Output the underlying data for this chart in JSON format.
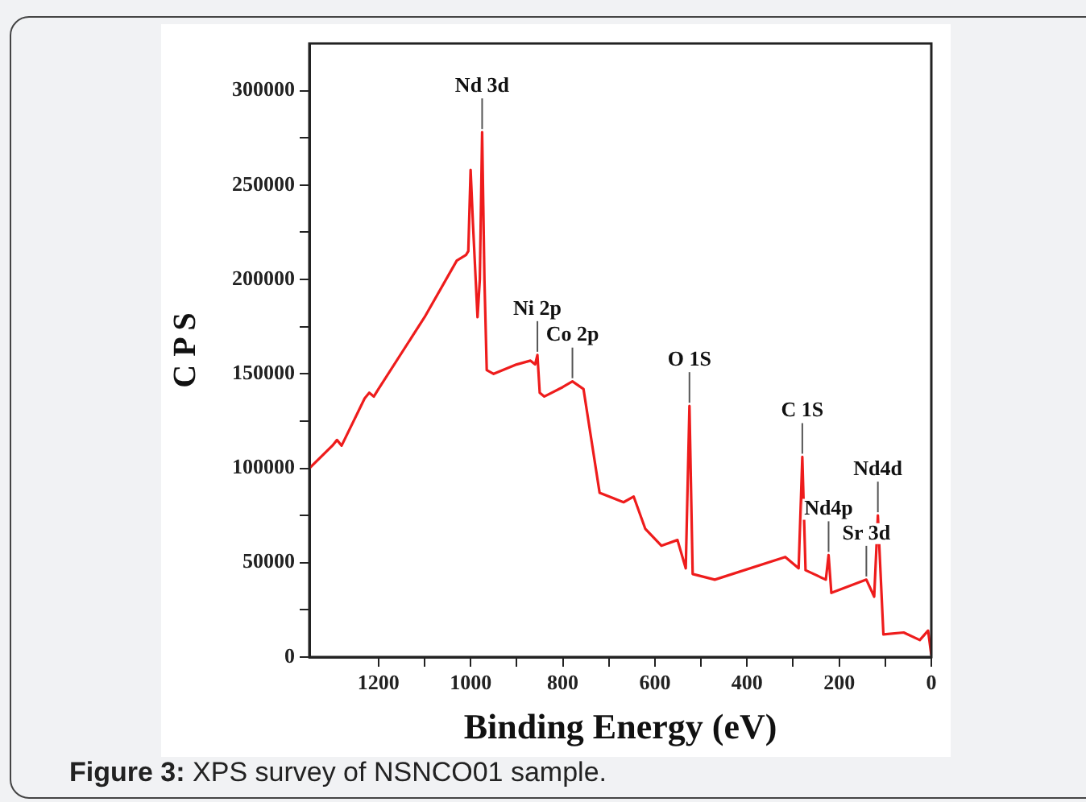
{
  "chart_data": {
    "type": "line",
    "xlabel": "Binding Energy (eV)",
    "ylabel": "C P S",
    "x": [
      1350,
      1300,
      1290,
      1280,
      1230,
      1220,
      1210,
      1200,
      1100,
      1030,
      1010,
      1005,
      1000,
      995,
      985,
      980,
      975,
      970,
      965,
      950,
      900,
      870,
      860,
      855,
      850,
      840,
      832,
      800,
      779,
      755,
      720,
      668,
      646,
      621,
      586,
      551,
      533,
      525,
      518,
      470,
      317,
      288,
      280,
      273,
      229,
      223,
      217,
      141,
      124,
      116,
      104,
      60,
      25,
      7,
      0
    ],
    "series": [
      {
        "color": "#ee1c1c",
        "values": [
          100000,
          112000,
          115000,
          112000,
          137000,
          140000,
          138000,
          142000,
          180000,
          210000,
          213000,
          215000,
          258000,
          230000,
          180000,
          200000,
          278000,
          200000,
          152000,
          150000,
          155000,
          157000,
          155000,
          160000,
          140000,
          138000,
          139000,
          143000,
          146000,
          142000,
          87000,
          82000,
          85000,
          68000,
          59000,
          62000,
          47000,
          133000,
          44000,
          41000,
          53000,
          47000,
          106000,
          46000,
          41000,
          54000,
          34000,
          41000,
          32000,
          75000,
          12000,
          13000,
          9000,
          14000,
          1000
        ]
      }
    ],
    "xlim": [
      1350,
      0
    ],
    "xticks": [
      1200,
      {
        "value": 1100,
        "label": null
      },
      1000,
      {
        "value": 900,
        "label": null
      },
      800,
      {
        "value": 700,
        "label": null
      },
      600,
      {
        "value": 500,
        "label": null
      },
      400,
      {
        "value": 300,
        "label": null
      },
      200,
      {
        "value": 100,
        "label": null
      },
      0
    ],
    "ylim": [
      0,
      325000
    ],
    "yticks": [
      0,
      {
        "value": 25000,
        "label": null
      },
      50000,
      {
        "value": 75000,
        "label": null
      },
      100000,
      {
        "value": 125000,
        "label": null
      },
      150000,
      {
        "value": 175000,
        "label": null
      },
      200000,
      {
        "value": 225000,
        "label": null
      },
      250000,
      {
        "value": 275000,
        "label": null
      },
      300000
    ],
    "grid": false,
    "legend": false,
    "marker": "none",
    "line_style": "solid",
    "annotations": [
      {
        "text": "Nd 3d",
        "x": 975,
        "y": 278000
      },
      {
        "text": "Ni 2p",
        "x": 855,
        "y": 160000
      },
      {
        "text": "Co 2p",
        "x": 779,
        "y": 146000
      },
      {
        "text": "O 1S",
        "x": 525,
        "y": 133000
      },
      {
        "text": "C 1S",
        "x": 280,
        "y": 106000
      },
      {
        "text": "Nd4p",
        "x": 223,
        "y": 54000
      },
      {
        "text": "Sr 3d",
        "x": 141,
        "y": 41000
      },
      {
        "text": "Nd4d",
        "x": 116,
        "y": 75000
      },
      "Figure 3: XPS survey of NSNCO01 sample."
    ]
  }
}
